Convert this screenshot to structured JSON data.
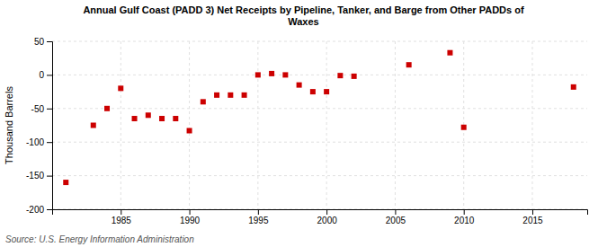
{
  "chart_data": {
    "type": "scatter",
    "title": "Annual Gulf Coast (PADD 3) Net Receipts by Pipeline, Tanker, and Barge from Other PADDs of\nWaxes",
    "ylabel": "Thousand Barrels",
    "source": "Source: U.S. Energy Information Administration",
    "x": [
      1981,
      1983,
      1984,
      1985,
      1986,
      1987,
      1988,
      1989,
      1990,
      1991,
      1992,
      1993,
      1994,
      1995,
      1996,
      1997,
      1998,
      1999,
      2000,
      2001,
      2002,
      2006,
      2009,
      2010,
      2018
    ],
    "values": [
      -160,
      -75,
      -50,
      -20,
      -65,
      -60,
      -65,
      -65,
      -83,
      -40,
      -30,
      -30,
      -30,
      0,
      2,
      0,
      -15,
      -25,
      -25,
      -1,
      -2,
      15,
      33,
      -78,
      -18
    ],
    "color": "#cc0000",
    "marker": "square",
    "xlim": [
      1980,
      2019
    ],
    "xticks": [
      1985,
      1990,
      1995,
      2000,
      2005,
      2010,
      2015
    ],
    "ylim": [
      -200,
      50
    ],
    "yticks": [
      -200,
      -150,
      -100,
      -50,
      0,
      50
    ],
    "grid": true
  }
}
